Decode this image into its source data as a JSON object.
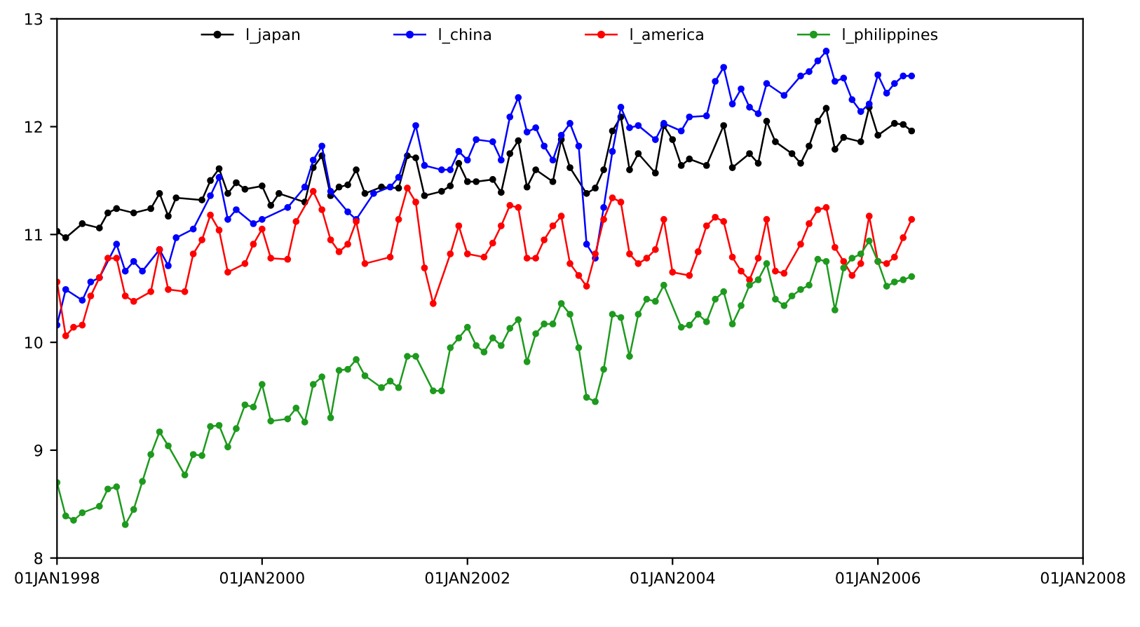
{
  "chart_data": {
    "type": "line",
    "marker": "circle",
    "line_style": "solid",
    "grid": false,
    "legend": "top",
    "xlim": [
      "1998-01-01",
      "2008-01-01"
    ],
    "xticks": [
      {
        "value": "1998-01-01",
        "label": "01JAN1998"
      },
      {
        "value": "2000-01-01",
        "label": "01JAN2000"
      },
      {
        "value": "2002-01-01",
        "label": "01JAN2002"
      },
      {
        "value": "2004-01-01",
        "label": "01JAN2004"
      },
      {
        "value": "2006-01-01",
        "label": "01JAN2006"
      },
      {
        "value": "2008-01-01",
        "label": "01JAN2008"
      }
    ],
    "ylim": [
      8,
      13
    ],
    "yticks": [
      8,
      9,
      10,
      11,
      12,
      13
    ],
    "series": [
      {
        "name": "l_japan",
        "color": "#000000",
        "x": [
          "1998-01",
          "1998-02",
          "1998-04",
          "1998-06",
          "1998-07",
          "1998-08",
          "1998-10",
          "1998-12",
          "1999-01",
          "1999-02",
          "1999-03",
          "1999-06",
          "1999-07",
          "1999-08",
          "1999-09",
          "1999-10",
          "1999-11",
          "2000-01",
          "2000-02",
          "2000-03",
          "2000-06",
          "2000-07",
          "2000-08",
          "2000-09",
          "2000-10",
          "2000-11",
          "2000-12",
          "2001-01",
          "2001-03",
          "2001-05",
          "2001-06",
          "2001-07",
          "2001-08",
          "2001-10",
          "2001-11",
          "2001-12",
          "2002-01",
          "2002-02",
          "2002-04",
          "2002-05",
          "2002-06",
          "2002-07",
          "2002-08",
          "2002-09",
          "2002-11",
          "2002-12",
          "2003-01",
          "2003-03",
          "2003-04",
          "2003-05",
          "2003-06",
          "2003-07",
          "2003-08",
          "2003-09",
          "2003-11",
          "2003-12",
          "2004-01",
          "2004-02",
          "2004-03",
          "2004-05",
          "2004-07",
          "2004-08",
          "2004-10",
          "2004-11",
          "2004-12",
          "2005-01",
          "2005-03",
          "2005-04",
          "2005-05",
          "2005-06",
          "2005-07",
          "2005-08",
          "2005-09",
          "2005-11",
          "2005-12",
          "2006-01",
          "2006-03",
          "2006-04",
          "2006-05"
        ],
        "values": [
          11.03,
          10.97,
          11.1,
          11.06,
          11.2,
          11.24,
          11.2,
          11.24,
          11.38,
          11.17,
          11.34,
          11.32,
          11.5,
          11.61,
          11.38,
          11.48,
          11.42,
          11.45,
          11.27,
          11.38,
          11.3,
          11.62,
          11.73,
          11.36,
          11.44,
          11.46,
          11.6,
          11.38,
          11.44,
          11.43,
          11.73,
          11.71,
          11.36,
          11.4,
          11.45,
          11.66,
          11.49,
          11.49,
          11.51,
          11.39,
          11.75,
          11.87,
          11.44,
          11.6,
          11.49,
          11.88,
          11.62,
          11.38,
          11.43,
          11.6,
          11.96,
          12.09,
          11.6,
          11.75,
          11.57,
          12.01,
          11.88,
          11.64,
          11.7,
          11.64,
          12.01,
          11.62,
          11.75,
          11.66,
          12.05,
          11.86,
          11.75,
          11.66,
          11.82,
          12.05,
          12.17,
          11.79,
          11.9,
          11.86,
          12.18,
          11.92,
          12.03,
          12.02,
          11.96
        ]
      },
      {
        "name": "l_china",
        "color": "#0000ff",
        "x": [
          "1998-01",
          "1998-02",
          "1998-04",
          "1998-05",
          "1998-06",
          "1998-08",
          "1998-09",
          "1998-10",
          "1998-11",
          "1999-01",
          "1999-02",
          "1999-03",
          "1999-05",
          "1999-07",
          "1999-08",
          "1999-09",
          "1999-10",
          "1999-12",
          "2000-01",
          "2000-04",
          "2000-06",
          "2000-07",
          "2000-08",
          "2000-09",
          "2000-11",
          "2000-12",
          "2001-02",
          "2001-04",
          "2001-05",
          "2001-07",
          "2001-08",
          "2001-10",
          "2001-11",
          "2001-12",
          "2002-01",
          "2002-02",
          "2002-04",
          "2002-05",
          "2002-06",
          "2002-07",
          "2002-08",
          "2002-09",
          "2002-10",
          "2002-11",
          "2002-12",
          "2003-01",
          "2003-02",
          "2003-03",
          "2003-04",
          "2003-05",
          "2003-06",
          "2003-07",
          "2003-08",
          "2003-09",
          "2003-11",
          "2003-12",
          "2004-02",
          "2004-03",
          "2004-05",
          "2004-06",
          "2004-07",
          "2004-08",
          "2004-09",
          "2004-10",
          "2004-11",
          "2004-12",
          "2005-02",
          "2005-04",
          "2005-05",
          "2005-06",
          "2005-07",
          "2005-08",
          "2005-09",
          "2005-10",
          "2005-11",
          "2005-12",
          "2006-01",
          "2006-02",
          "2006-03",
          "2006-04",
          "2006-05"
        ],
        "values": [
          10.16,
          10.49,
          10.39,
          10.56,
          10.6,
          10.91,
          10.66,
          10.75,
          10.66,
          10.86,
          10.71,
          10.97,
          11.05,
          11.36,
          11.53,
          11.14,
          11.23,
          11.1,
          11.14,
          11.25,
          11.44,
          11.69,
          11.82,
          11.4,
          11.21,
          11.14,
          11.38,
          11.44,
          11.53,
          12.01,
          11.64,
          11.6,
          11.6,
          11.77,
          11.69,
          11.88,
          11.86,
          11.69,
          12.09,
          12.27,
          11.95,
          11.99,
          11.82,
          11.69,
          11.92,
          12.03,
          11.82,
          10.91,
          10.78,
          11.25,
          11.77,
          12.18,
          11.99,
          12.01,
          11.88,
          12.03,
          11.96,
          12.09,
          12.1,
          12.42,
          12.55,
          12.21,
          12.35,
          12.18,
          12.12,
          12.4,
          12.29,
          12.47,
          12.51,
          12.61,
          12.7,
          12.42,
          12.45,
          12.25,
          12.14,
          12.21,
          12.48,
          12.31,
          12.4,
          12.47,
          12.47
        ]
      },
      {
        "name": "l_america",
        "color": "#ff0000",
        "x": [
          "1998-01",
          "1998-02",
          "1998-03",
          "1998-04",
          "1998-05",
          "1998-06",
          "1998-07",
          "1998-08",
          "1998-09",
          "1998-10",
          "1998-12",
          "1999-01",
          "1999-02",
          "1999-04",
          "1999-05",
          "1999-06",
          "1999-07",
          "1999-08",
          "1999-09",
          "1999-11",
          "1999-12",
          "2000-01",
          "2000-02",
          "2000-04",
          "2000-05",
          "2000-07",
          "2000-08",
          "2000-09",
          "2000-10",
          "2000-11",
          "2000-12",
          "2001-01",
          "2001-04",
          "2001-05",
          "2001-06",
          "2001-07",
          "2001-08",
          "2001-09",
          "2001-11",
          "2001-12",
          "2002-01",
          "2002-03",
          "2002-04",
          "2002-05",
          "2002-06",
          "2002-07",
          "2002-08",
          "2002-09",
          "2002-10",
          "2002-11",
          "2002-12",
          "2003-01",
          "2003-02",
          "2003-03",
          "2003-04",
          "2003-05",
          "2003-06",
          "2003-07",
          "2003-08",
          "2003-09",
          "2003-10",
          "2003-11",
          "2003-12",
          "2004-01",
          "2004-03",
          "2004-04",
          "2004-05",
          "2004-06",
          "2004-07",
          "2004-08",
          "2004-09",
          "2004-10",
          "2004-11",
          "2004-12",
          "2005-01",
          "2005-02",
          "2005-04",
          "2005-05",
          "2005-06",
          "2005-07",
          "2005-08",
          "2005-09",
          "2005-10",
          "2005-11",
          "2005-12",
          "2006-01",
          "2006-02",
          "2006-03",
          "2006-04",
          "2006-05"
        ],
        "values": [
          10.56,
          10.06,
          10.14,
          10.16,
          10.43,
          10.6,
          10.78,
          10.78,
          10.43,
          10.38,
          10.47,
          10.86,
          10.49,
          10.47,
          10.82,
          10.95,
          11.18,
          11.04,
          10.65,
          10.73,
          10.91,
          11.05,
          10.78,
          10.77,
          11.12,
          11.4,
          11.23,
          10.95,
          10.84,
          10.91,
          11.12,
          10.73,
          10.79,
          11.14,
          11.43,
          11.3,
          10.69,
          10.36,
          10.82,
          11.08,
          10.82,
          10.79,
          10.92,
          11.08,
          11.27,
          11.25,
          10.78,
          10.78,
          10.95,
          11.08,
          11.17,
          10.73,
          10.62,
          10.52,
          10.82,
          11.14,
          11.34,
          11.3,
          10.82,
          10.73,
          10.78,
          10.86,
          11.14,
          10.65,
          10.62,
          10.84,
          11.08,
          11.16,
          11.12,
          10.79,
          10.66,
          10.58,
          10.78,
          11.14,
          10.66,
          10.64,
          10.91,
          11.1,
          11.23,
          11.25,
          10.88,
          10.75,
          10.62,
          10.73,
          11.17,
          10.75,
          10.73,
          10.79,
          10.97,
          11.14
        ]
      },
      {
        "name": "l_philippines",
        "color": "#1e9a1e",
        "x": [
          "1998-01",
          "1998-02",
          "1998-03",
          "1998-04",
          "1998-06",
          "1998-07",
          "1998-08",
          "1998-09",
          "1998-10",
          "1998-11",
          "1998-12",
          "1999-01",
          "1999-02",
          "1999-04",
          "1999-05",
          "1999-06",
          "1999-07",
          "1999-08",
          "1999-09",
          "1999-10",
          "1999-11",
          "1999-12",
          "2000-01",
          "2000-02",
          "2000-04",
          "2000-05",
          "2000-06",
          "2000-07",
          "2000-08",
          "2000-09",
          "2000-10",
          "2000-11",
          "2000-12",
          "2001-01",
          "2001-03",
          "2001-04",
          "2001-05",
          "2001-06",
          "2001-07",
          "2001-09",
          "2001-10",
          "2001-11",
          "2001-12",
          "2002-01",
          "2002-02",
          "2002-03",
          "2002-04",
          "2002-05",
          "2002-06",
          "2002-07",
          "2002-08",
          "2002-09",
          "2002-10",
          "2002-11",
          "2002-12",
          "2003-01",
          "2003-02",
          "2003-03",
          "2003-04",
          "2003-05",
          "2003-06",
          "2003-07",
          "2003-08",
          "2003-09",
          "2003-10",
          "2003-11",
          "2003-12",
          "2004-02",
          "2004-03",
          "2004-04",
          "2004-05",
          "2004-06",
          "2004-07",
          "2004-08",
          "2004-09",
          "2004-10",
          "2004-11",
          "2004-12",
          "2005-01",
          "2005-02",
          "2005-03",
          "2005-04",
          "2005-05",
          "2005-06",
          "2005-07",
          "2005-08",
          "2005-09",
          "2005-10",
          "2005-11",
          "2005-12",
          "2006-01",
          "2006-02",
          "2006-03",
          "2006-04",
          "2006-05"
        ],
        "values": [
          8.7,
          8.39,
          8.35,
          8.42,
          8.48,
          8.64,
          8.66,
          8.31,
          8.45,
          8.71,
          8.96,
          9.17,
          9.04,
          8.77,
          8.96,
          8.95,
          9.22,
          9.23,
          9.03,
          9.2,
          9.42,
          9.4,
          9.61,
          9.27,
          9.29,
          9.39,
          9.26,
          9.61,
          9.68,
          9.3,
          9.74,
          9.75,
          9.84,
          9.69,
          9.58,
          9.64,
          9.58,
          9.87,
          9.87,
          9.55,
          9.55,
          9.95,
          10.04,
          10.14,
          9.97,
          9.91,
          10.04,
          9.97,
          10.13,
          10.21,
          9.82,
          10.08,
          10.17,
          10.17,
          10.36,
          10.26,
          9.95,
          9.49,
          9.45,
          9.75,
          10.26,
          10.23,
          9.87,
          10.26,
          10.4,
          10.38,
          10.53,
          10.14,
          10.16,
          10.26,
          10.19,
          10.4,
          10.47,
          10.17,
          10.34,
          10.53,
          10.58,
          10.73,
          10.4,
          10.34,
          10.43,
          10.49,
          10.53,
          10.77,
          10.75,
          10.3,
          10.69,
          10.78,
          10.82,
          10.94,
          10.75,
          10.52,
          10.56,
          10.58,
          10.61
        ]
      }
    ]
  }
}
